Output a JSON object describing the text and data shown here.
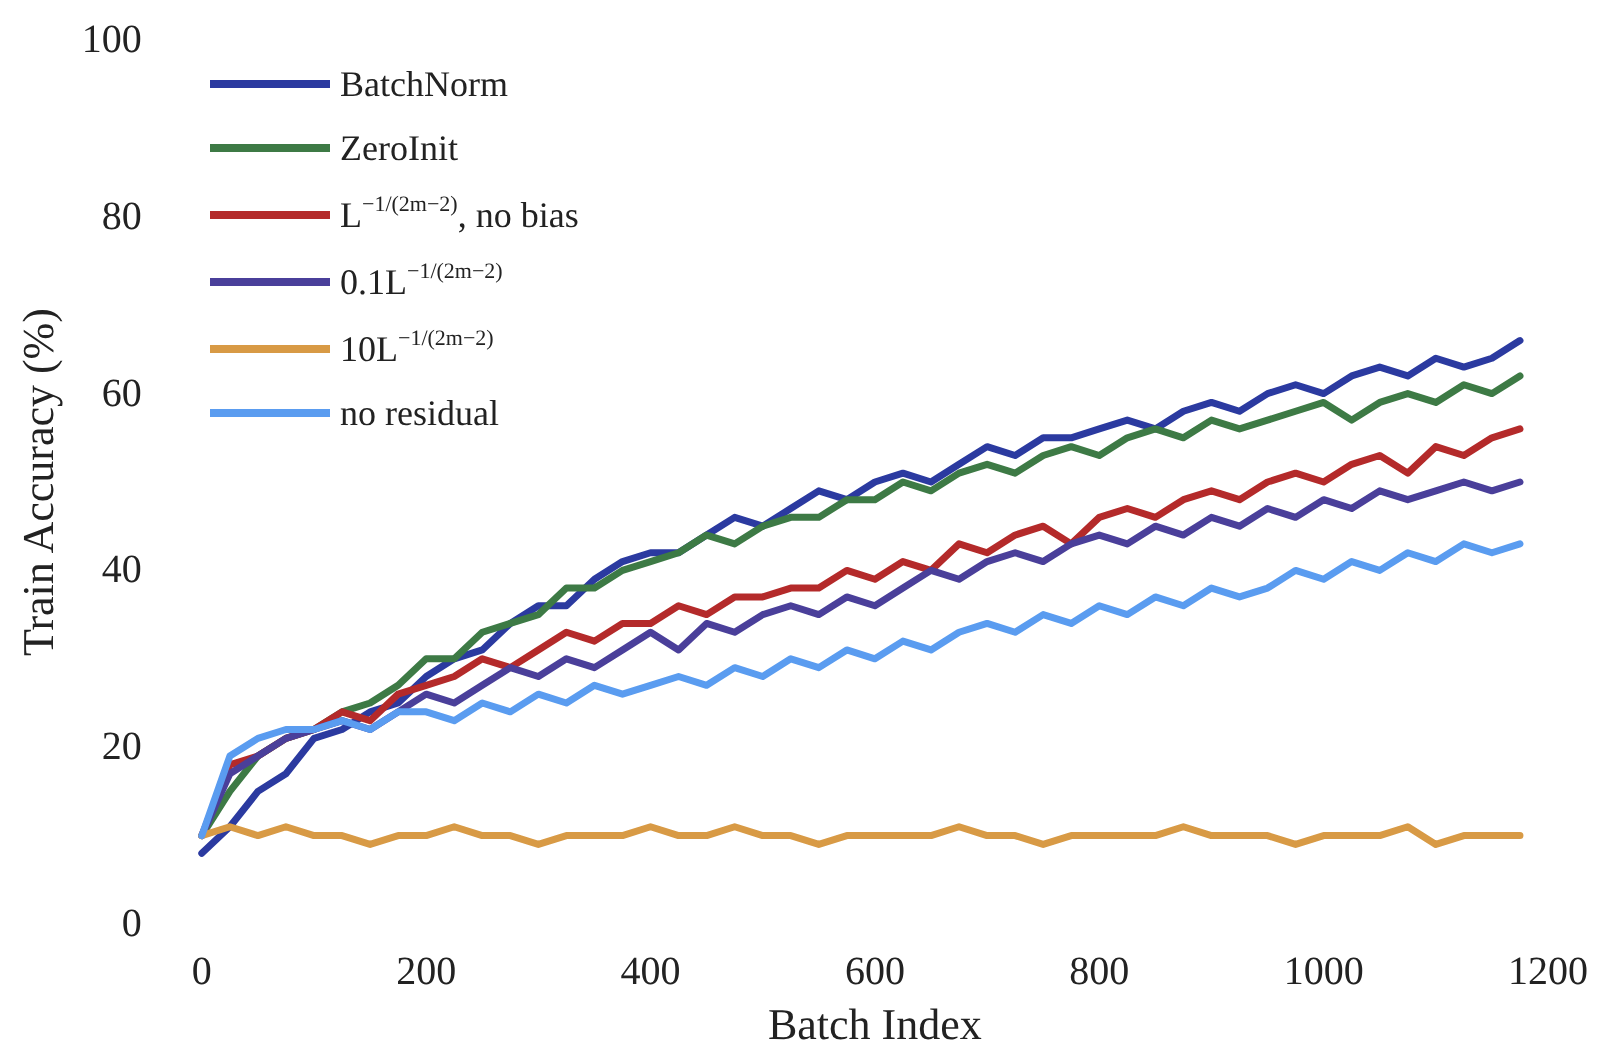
{
  "chart_data": {
    "type": "line",
    "xlabel": "Batch Index",
    "ylabel": "Train Accuracy (%)",
    "x": [
      0,
      25,
      50,
      75,
      100,
      125,
      150,
      175,
      200,
      225,
      250,
      275,
      300,
      325,
      350,
      375,
      400,
      425,
      450,
      475,
      500,
      525,
      550,
      575,
      600,
      625,
      650,
      675,
      700,
      725,
      750,
      775,
      800,
      825,
      850,
      875,
      900,
      925,
      950,
      975,
      1000,
      1025,
      1050,
      1075,
      1100,
      1125,
      1150,
      1175
    ],
    "series": [
      {
        "name": "BatchNorm",
        "color": "#2b3aa0",
        "values": [
          8,
          11,
          15,
          17,
          21,
          22,
          24,
          25,
          28,
          30,
          31,
          34,
          36,
          36,
          39,
          41,
          42,
          42,
          44,
          46,
          45,
          47,
          49,
          48,
          50,
          51,
          50,
          52,
          54,
          53,
          55,
          55,
          56,
          57,
          56,
          58,
          59,
          58,
          60,
          61,
          60,
          62,
          63,
          62,
          64,
          63,
          64,
          66
        ]
      },
      {
        "name": "ZeroInit",
        "color": "#3d7a45",
        "values": [
          10,
          15,
          19,
          21,
          22,
          24,
          25,
          27,
          30,
          30,
          33,
          34,
          35,
          38,
          38,
          40,
          41,
          42,
          44,
          43,
          45,
          46,
          46,
          48,
          48,
          50,
          49,
          51,
          52,
          51,
          53,
          54,
          53,
          55,
          56,
          55,
          57,
          56,
          57,
          58,
          59,
          57,
          59,
          60,
          59,
          61,
          60,
          62
        ]
      },
      {
        "name": "L$^{−1/(2m−2)}$, no bias",
        "color": "#b42a2a",
        "values": [
          10,
          18,
          19,
          21,
          22,
          24,
          23,
          26,
          27,
          28,
          30,
          29,
          31,
          33,
          32,
          34,
          34,
          36,
          35,
          37,
          37,
          38,
          38,
          40,
          39,
          41,
          40,
          43,
          42,
          44,
          45,
          43,
          46,
          47,
          46,
          48,
          49,
          48,
          50,
          51,
          50,
          52,
          53,
          51,
          54,
          53,
          55,
          56
        ]
      },
      {
        "name": "0.1L$^{−1/(2m−2)}$",
        "color": "#4a3f9a",
        "values": [
          10,
          17,
          19,
          21,
          22,
          23,
          22,
          24,
          26,
          25,
          27,
          29,
          28,
          30,
          29,
          31,
          33,
          31,
          34,
          33,
          35,
          36,
          35,
          37,
          36,
          38,
          40,
          39,
          41,
          42,
          41,
          43,
          44,
          43,
          45,
          44,
          46,
          45,
          47,
          46,
          48,
          47,
          49,
          48,
          49,
          50,
          49,
          50
        ]
      },
      {
        "name": "10L$^{−1/(2m−2)}$",
        "color": "#d89a45",
        "values": [
          10,
          11,
          10,
          11,
          10,
          10,
          9,
          10,
          10,
          11,
          10,
          10,
          9,
          10,
          10,
          10,
          11,
          10,
          10,
          11,
          10,
          10,
          9,
          10,
          10,
          10,
          10,
          11,
          10,
          10,
          9,
          10,
          10,
          10,
          10,
          11,
          10,
          10,
          10,
          9,
          10,
          10,
          10,
          11,
          9,
          10,
          10,
          10
        ]
      },
      {
        "name": "no residual",
        "color": "#5a9cf0",
        "values": [
          10,
          19,
          21,
          22,
          22,
          23,
          22,
          24,
          24,
          23,
          25,
          24,
          26,
          25,
          27,
          26,
          27,
          28,
          27,
          29,
          28,
          30,
          29,
          31,
          30,
          32,
          31,
          33,
          34,
          33,
          35,
          34,
          36,
          35,
          37,
          36,
          38,
          37,
          38,
          40,
          39,
          41,
          40,
          42,
          41,
          43,
          42,
          43
        ]
      }
    ],
    "xlim": [
      0,
      1200
    ],
    "xticks": [
      0,
      200,
      400,
      600,
      800,
      1000,
      1200
    ],
    "ylim": [
      0,
      100
    ],
    "yticks": [
      0,
      20,
      40,
      60,
      80,
      100
    ],
    "grid": false,
    "legend": "top left",
    "marker": "none",
    "line_style": "solid"
  }
}
